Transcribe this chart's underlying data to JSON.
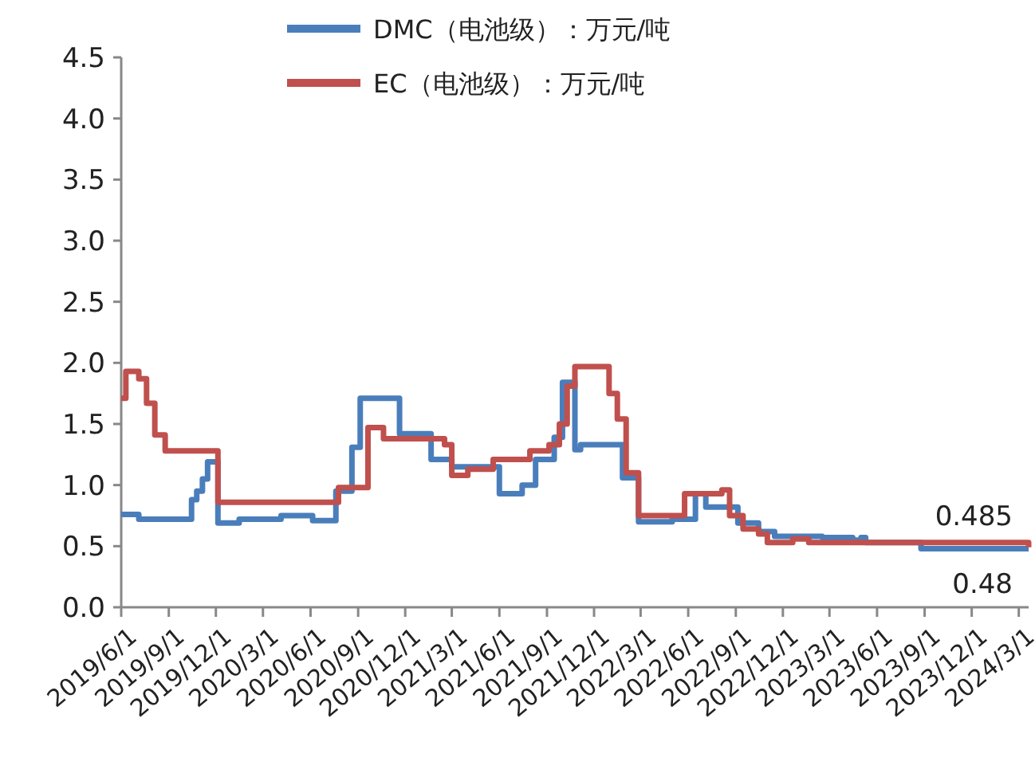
{
  "chart_data": {
    "type": "step",
    "xlim": [
      "2019-06-01",
      "2024-03-20"
    ],
    "ylim": [
      0,
      4.5
    ],
    "yticks": [
      {
        "value": 0,
        "label": "0.0"
      },
      {
        "value": 0.5,
        "label": "0.5"
      },
      {
        "value": 1,
        "label": "1.0"
      },
      {
        "value": 1.5,
        "label": "1.5"
      },
      {
        "value": 2,
        "label": "2.0"
      },
      {
        "value": 2.5,
        "label": "2.5"
      },
      {
        "value": 3,
        "label": "3.0"
      },
      {
        "value": 3.5,
        "label": "3.5"
      },
      {
        "value": 4,
        "label": "4.0"
      },
      {
        "value": 4.5,
        "label": "4.5"
      }
    ],
    "xticks": [
      {
        "value": "2019-06-01",
        "label": "2019/6/1"
      },
      {
        "value": "2019-09-01",
        "label": "2019/9/1"
      },
      {
        "value": "2019-12-01",
        "label": "2019/12/1"
      },
      {
        "value": "2020-03-01",
        "label": "2020/3/1"
      },
      {
        "value": "2020-06-01",
        "label": "2020/6/1"
      },
      {
        "value": "2020-09-01",
        "label": "2020/9/1"
      },
      {
        "value": "2020-12-01",
        "label": "2020/12/1"
      },
      {
        "value": "2021-03-01",
        "label": "2021/3/1"
      },
      {
        "value": "2021-06-01",
        "label": "2021/6/1"
      },
      {
        "value": "2021-09-01",
        "label": "2021/9/1"
      },
      {
        "value": "2021-12-01",
        "label": "2021/12/1"
      },
      {
        "value": "2022-03-01",
        "label": "2022/3/1"
      },
      {
        "value": "2022-06-01",
        "label": "2022/6/1"
      },
      {
        "value": "2022-09-01",
        "label": "2022/9/1"
      },
      {
        "value": "2022-12-01",
        "label": "2022/12/1"
      },
      {
        "value": "2023-03-01",
        "label": "2023/3/1"
      },
      {
        "value": "2023-06-01",
        "label": "2023/6/1"
      },
      {
        "value": "2023-09-01",
        "label": "2023/9/1"
      },
      {
        "value": "2023-12-01",
        "label": "2023/12/1"
      },
      {
        "value": "2024-03-01",
        "label": "2024/3/1"
      }
    ],
    "grid": false,
    "legend": "top",
    "line_style": "solid",
    "marker": "none",
    "annotations": [
      "0.485",
      "0.48"
    ],
    "series": [
      {
        "name": "DMC（电池级）：万元/吨",
        "color": "#4a7ebb",
        "x": [
          "2019-06-01",
          "2019-07-05",
          "2019-10-15",
          "2019-10-25",
          "2019-11-05",
          "2019-11-15",
          "2019-12-05",
          "2020-01-15",
          "2020-04-05",
          "2020-06-05",
          "2020-07-20",
          "2020-08-20",
          "2020-09-05",
          "2020-09-20",
          "2020-11-20",
          "2021-01-20",
          "2021-03-01",
          "2021-06-01",
          "2021-07-15",
          "2021-08-10",
          "2021-09-15",
          "2021-10-01",
          "2021-10-25",
          "2021-11-05",
          "2022-01-05",
          "2022-01-25",
          "2022-02-25",
          "2022-05-01",
          "2022-06-15",
          "2022-07-05",
          "2022-08-05",
          "2022-09-05",
          "2022-10-15",
          "2022-11-15",
          "2023-02-15",
          "2023-04-15",
          "2023-05-01",
          "2023-05-10",
          "2023-08-25",
          "2024-03-20"
        ],
        "values": [
          0.76,
          0.72,
          0.88,
          0.95,
          1.05,
          1.19,
          0.69,
          0.72,
          0.75,
          0.71,
          0.95,
          1.31,
          1.71,
          1.71,
          1.42,
          1.21,
          1.15,
          0.93,
          1.0,
          1.21,
          1.39,
          1.84,
          1.29,
          1.33,
          1.33,
          1.06,
          0.7,
          0.72,
          0.93,
          0.82,
          0.82,
          0.69,
          0.62,
          0.58,
          0.57,
          0.55,
          0.57,
          0.53,
          0.48,
          0.48
        ]
      },
      {
        "name": "EC（电池级）：万元/吨",
        "color": "#c0504d",
        "x": [
          "2019-06-01",
          "2019-06-10",
          "2019-07-05",
          "2019-07-20",
          "2019-08-05",
          "2019-08-25",
          "2019-12-05",
          "2019-12-15",
          "2020-07-25",
          "2020-09-20",
          "2020-09-30",
          "2020-10-20",
          "2021-02-15",
          "2021-03-01",
          "2021-04-01",
          "2021-05-20",
          "2021-07-15",
          "2021-07-30",
          "2021-09-05",
          "2021-09-25",
          "2021-10-10",
          "2021-10-25",
          "2021-12-20",
          "2021-12-30",
          "2022-01-15",
          "2022-02-01",
          "2022-02-25",
          "2022-05-01",
          "2022-05-25",
          "2022-08-05",
          "2022-08-20",
          "2022-09-15",
          "2022-10-15",
          "2022-11-01",
          "2022-12-20",
          "2023-01-20",
          "2024-03-20"
        ],
        "values": [
          1.71,
          1.93,
          1.87,
          1.67,
          1.41,
          1.28,
          0.86,
          0.86,
          0.98,
          1.47,
          1.47,
          1.38,
          1.33,
          1.08,
          1.13,
          1.21,
          1.21,
          1.28,
          1.33,
          1.5,
          1.81,
          1.97,
          1.97,
          1.75,
          1.54,
          1.1,
          0.75,
          0.75,
          0.93,
          0.96,
          0.75,
          0.64,
          0.6,
          0.53,
          0.56,
          0.53,
          0.49
        ]
      }
    ]
  }
}
